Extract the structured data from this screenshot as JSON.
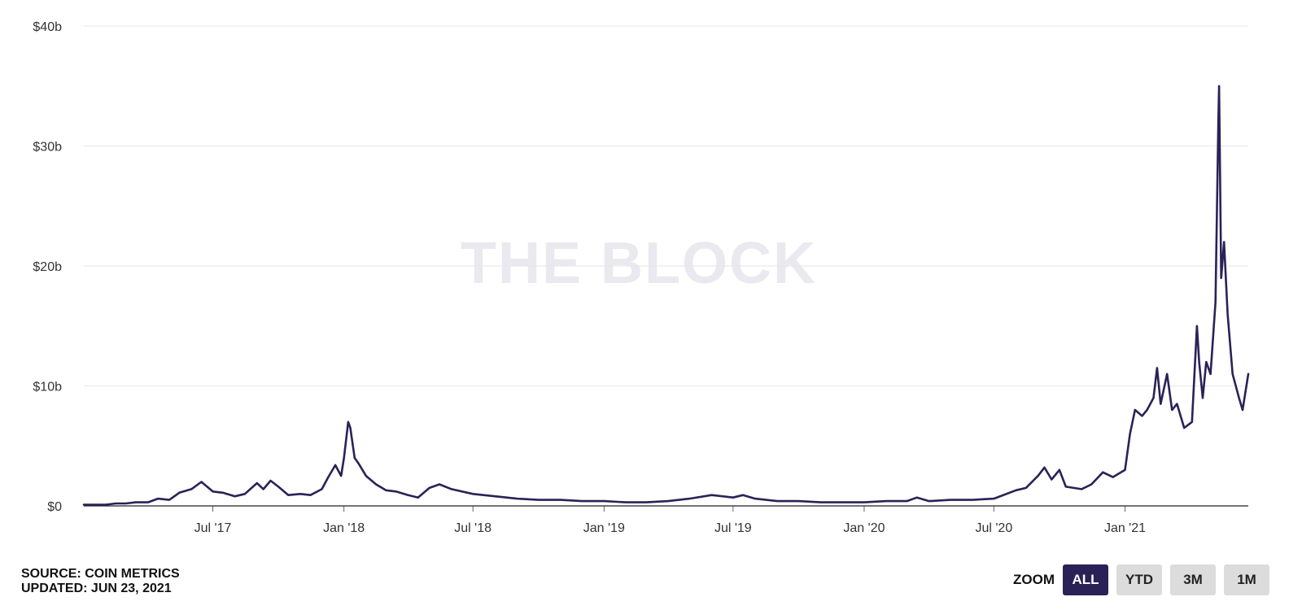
{
  "chart_data": {
    "type": "line",
    "watermark": "THE BLOCK",
    "y_ticks": [
      "$0",
      "$10b",
      "$20b",
      "$30b",
      "$40b"
    ],
    "ylim": [
      0,
      40
    ],
    "y_unit": "billion USD",
    "x_ticks": [
      "Jul '17",
      "Jan '18",
      "Jul '18",
      "Jan '19",
      "Jul '19",
      "Jan '20",
      "Jul '20",
      "Jan '21"
    ],
    "x_tick_dates": [
      "2017-07-01",
      "2018-01-01",
      "2018-07-01",
      "2019-01-01",
      "2019-07-01",
      "2020-01-01",
      "2020-07-01",
      "2021-01-01"
    ],
    "xlim": [
      "2017-01-01",
      "2021-06-23"
    ],
    "grid": true,
    "line_color": "#2a2257",
    "series": [
      {
        "values": [
          [
            "2017-01-01",
            0.1
          ],
          [
            "2017-02-01",
            0.1
          ],
          [
            "2017-02-15",
            0.2
          ],
          [
            "2017-03-01",
            0.2
          ],
          [
            "2017-03-15",
            0.3
          ],
          [
            "2017-04-01",
            0.3
          ],
          [
            "2017-04-15",
            0.6
          ],
          [
            "2017-05-01",
            0.5
          ],
          [
            "2017-05-15",
            1.1
          ],
          [
            "2017-06-01",
            1.4
          ],
          [
            "2017-06-15",
            2.0
          ],
          [
            "2017-07-01",
            1.2
          ],
          [
            "2017-07-15",
            1.1
          ],
          [
            "2017-08-01",
            0.8
          ],
          [
            "2017-08-15",
            1.0
          ],
          [
            "2017-09-01",
            1.9
          ],
          [
            "2017-09-10",
            1.4
          ],
          [
            "2017-09-20",
            2.1
          ],
          [
            "2017-10-01",
            1.6
          ],
          [
            "2017-10-15",
            0.9
          ],
          [
            "2017-11-01",
            1.0
          ],
          [
            "2017-11-15",
            0.9
          ],
          [
            "2017-12-01",
            1.4
          ],
          [
            "2017-12-10",
            2.4
          ],
          [
            "2017-12-20",
            3.4
          ],
          [
            "2017-12-28",
            2.5
          ],
          [
            "2018-01-01",
            4.0
          ],
          [
            "2018-01-07",
            7.0
          ],
          [
            "2018-01-10",
            6.5
          ],
          [
            "2018-01-16",
            4.0
          ],
          [
            "2018-01-22",
            3.5
          ],
          [
            "2018-02-01",
            2.5
          ],
          [
            "2018-02-15",
            1.8
          ],
          [
            "2018-03-01",
            1.3
          ],
          [
            "2018-03-15",
            1.2
          ],
          [
            "2018-04-01",
            0.9
          ],
          [
            "2018-04-15",
            0.7
          ],
          [
            "2018-05-01",
            1.5
          ],
          [
            "2018-05-15",
            1.8
          ],
          [
            "2018-06-01",
            1.4
          ],
          [
            "2018-07-01",
            1.0
          ],
          [
            "2018-08-01",
            0.8
          ],
          [
            "2018-09-01",
            0.6
          ],
          [
            "2018-10-01",
            0.5
          ],
          [
            "2018-11-01",
            0.5
          ],
          [
            "2018-12-01",
            0.4
          ],
          [
            "2019-01-01",
            0.4
          ],
          [
            "2019-02-01",
            0.3
          ],
          [
            "2019-03-01",
            0.3
          ],
          [
            "2019-04-01",
            0.4
          ],
          [
            "2019-05-01",
            0.6
          ],
          [
            "2019-06-01",
            0.9
          ],
          [
            "2019-07-01",
            0.7
          ],
          [
            "2019-07-15",
            0.9
          ],
          [
            "2019-08-01",
            0.6
          ],
          [
            "2019-09-01",
            0.4
          ],
          [
            "2019-10-01",
            0.4
          ],
          [
            "2019-11-01",
            0.3
          ],
          [
            "2019-12-01",
            0.3
          ],
          [
            "2020-01-01",
            0.3
          ],
          [
            "2020-02-01",
            0.4
          ],
          [
            "2020-03-01",
            0.4
          ],
          [
            "2020-03-15",
            0.7
          ],
          [
            "2020-04-01",
            0.4
          ],
          [
            "2020-05-01",
            0.5
          ],
          [
            "2020-06-01",
            0.5
          ],
          [
            "2020-07-01",
            0.6
          ],
          [
            "2020-08-01",
            1.3
          ],
          [
            "2020-08-15",
            1.5
          ],
          [
            "2020-09-01",
            2.5
          ],
          [
            "2020-09-10",
            3.2
          ],
          [
            "2020-09-20",
            2.2
          ],
          [
            "2020-10-01",
            3.0
          ],
          [
            "2020-10-10",
            1.6
          ],
          [
            "2020-11-01",
            1.4
          ],
          [
            "2020-11-15",
            1.8
          ],
          [
            "2020-12-01",
            2.8
          ],
          [
            "2020-12-15",
            2.4
          ],
          [
            "2021-01-01",
            3.0
          ],
          [
            "2021-01-08",
            6.0
          ],
          [
            "2021-01-15",
            8.0
          ],
          [
            "2021-01-25",
            7.5
          ],
          [
            "2021-02-01",
            8.0
          ],
          [
            "2021-02-10",
            9.0
          ],
          [
            "2021-02-15",
            11.5
          ],
          [
            "2021-02-20",
            8.5
          ],
          [
            "2021-03-01",
            11.0
          ],
          [
            "2021-03-08",
            8.0
          ],
          [
            "2021-03-15",
            8.5
          ],
          [
            "2021-03-25",
            6.5
          ],
          [
            "2021-04-05",
            7.0
          ],
          [
            "2021-04-12",
            15.0
          ],
          [
            "2021-04-15",
            12.0
          ],
          [
            "2021-04-20",
            9.0
          ],
          [
            "2021-04-25",
            12.0
          ],
          [
            "2021-05-01",
            11.0
          ],
          [
            "2021-05-08",
            17.0
          ],
          [
            "2021-05-12",
            32.0
          ],
          [
            "2021-05-13",
            35.0
          ],
          [
            "2021-05-16",
            19.0
          ],
          [
            "2021-05-20",
            22.0
          ],
          [
            "2021-05-25",
            16.0
          ],
          [
            "2021-06-01",
            11.0
          ],
          [
            "2021-06-10",
            9.0
          ],
          [
            "2021-06-15",
            8.0
          ],
          [
            "2021-06-23",
            11.0
          ]
        ]
      }
    ]
  },
  "footer": {
    "source": "SOURCE: COIN METRICS",
    "updated": "UPDATED: JUN 23, 2021"
  },
  "zoom": {
    "label": "ZOOM",
    "buttons": [
      "ALL",
      "YTD",
      "3M",
      "1M"
    ],
    "active": "ALL"
  }
}
